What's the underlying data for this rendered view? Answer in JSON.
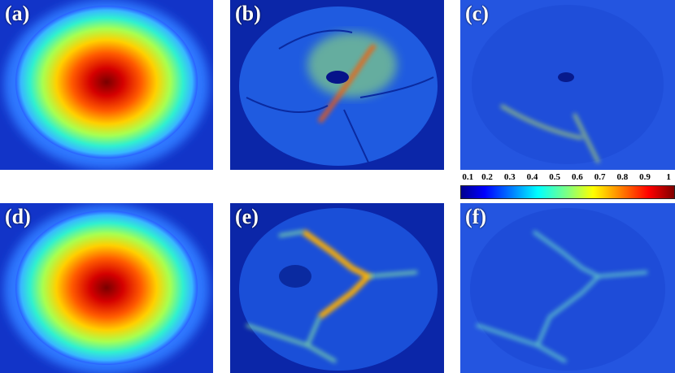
{
  "panels": [
    {
      "id": "a",
      "label": "(a)"
    },
    {
      "id": "b",
      "label": "(b)"
    },
    {
      "id": "c",
      "label": "(c)"
    },
    {
      "id": "d",
      "label": "(d)"
    },
    {
      "id": "e",
      "label": "(e)"
    },
    {
      "id": "f",
      "label": "(f)"
    }
  ],
  "colorbar": {
    "ticks": [
      "0.1",
      "0.2",
      "0.3",
      "0.4",
      "0.5",
      "0.6",
      "0.7",
      "0.8",
      "0.9",
      "1"
    ],
    "colormap": "jet"
  }
}
